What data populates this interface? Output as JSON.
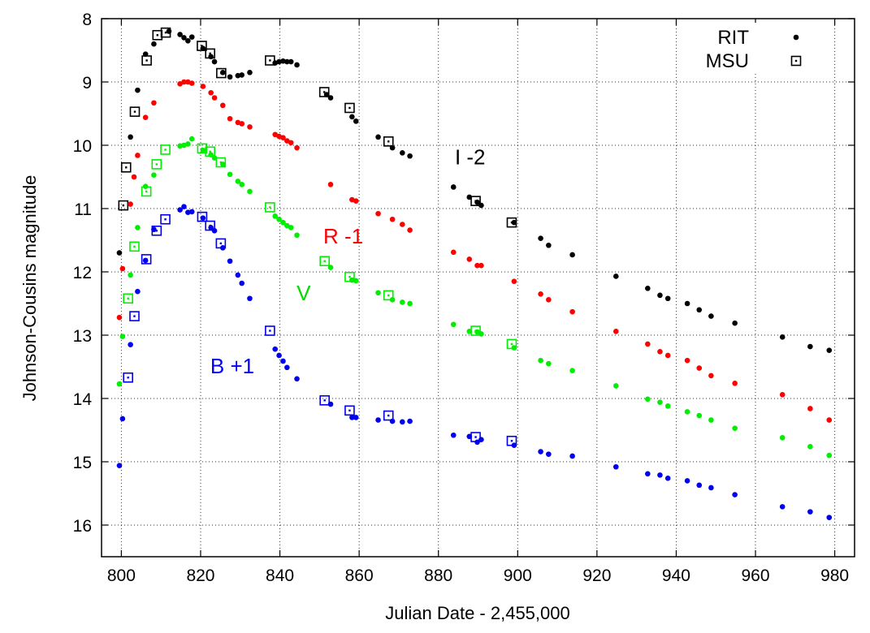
{
  "chart_data": {
    "type": "scatter",
    "xlabel": "Julian Date - 2,455,000",
    "ylabel": "Johnson-Cousins magnitude",
    "xlim": [
      795,
      985
    ],
    "ylim": [
      8,
      16.5
    ],
    "y_inverted": true,
    "grid": true,
    "x_ticks": [
      800,
      820,
      840,
      860,
      880,
      900,
      920,
      940,
      960,
      980
    ],
    "y_ticks": [
      8,
      9,
      10,
      11,
      12,
      13,
      14,
      15,
      16
    ],
    "legend": {
      "placement": "top-right",
      "entries": [
        {
          "label": "RIT",
          "marker": "dot"
        },
        {
          "label": "MSU",
          "marker": "square"
        }
      ]
    },
    "annotations": [
      {
        "text": "I -2",
        "x": 888,
        "y": 10.3,
        "color": "#000000"
      },
      {
        "text": "R -1",
        "x": 856,
        "y": 11.55,
        "color": "#ff0000"
      },
      {
        "text": "V",
        "x": 846,
        "y": 12.45,
        "color": "#00dd00"
      },
      {
        "text": "B +1",
        "x": 828,
        "y": 13.6,
        "color": "#0000ff"
      }
    ],
    "colors": {
      "I": "#000000",
      "R": "#ff0000",
      "V": "#00ee00",
      "B": "#0000ee"
    },
    "series": [
      {
        "band": "I",
        "instrument": "RIT",
        "color": "#000000",
        "marker": "dot",
        "points": [
          [
            799.5,
            11.7
          ],
          [
            802.3,
            9.87
          ],
          [
            804.1,
            9.13
          ],
          [
            806.1,
            8.56
          ],
          [
            808.2,
            8.4
          ],
          [
            812.0,
            8.2
          ],
          [
            814.8,
            8.25
          ],
          [
            815.8,
            8.3
          ],
          [
            816.8,
            8.35
          ],
          [
            817.8,
            8.29
          ],
          [
            820.6,
            8.47
          ],
          [
            822.6,
            8.6
          ],
          [
            823.5,
            8.68
          ],
          [
            825.6,
            8.85
          ],
          [
            827.4,
            8.92
          ],
          [
            829.4,
            8.9
          ],
          [
            830.4,
            8.89
          ],
          [
            832.4,
            8.85
          ],
          [
            838.8,
            8.7
          ],
          [
            839.8,
            8.68
          ],
          [
            840.8,
            8.67
          ],
          [
            841.8,
            8.68
          ],
          [
            842.8,
            8.68
          ],
          [
            844.3,
            8.73
          ],
          [
            851.8,
            9.2
          ],
          [
            852.8,
            9.25
          ],
          [
            858.2,
            9.55
          ],
          [
            859.2,
            9.62
          ],
          [
            864.8,
            9.87
          ],
          [
            868.4,
            10.04
          ],
          [
            870.9,
            10.12
          ],
          [
            872.8,
            10.17
          ],
          [
            883.8,
            10.66
          ],
          [
            887.8,
            10.82
          ],
          [
            889.8,
            10.9
          ],
          [
            890.8,
            10.95
          ],
          [
            899.1,
            11.22
          ],
          [
            905.8,
            11.47
          ],
          [
            907.8,
            11.58
          ],
          [
            913.8,
            11.73
          ],
          [
            924.8,
            12.07
          ],
          [
            932.8,
            12.26
          ],
          [
            935.9,
            12.37
          ],
          [
            937.9,
            12.42
          ],
          [
            942.8,
            12.5
          ],
          [
            945.8,
            12.6
          ],
          [
            948.8,
            12.7
          ],
          [
            954.8,
            12.81
          ],
          [
            966.8,
            13.03
          ],
          [
            973.8,
            13.18
          ],
          [
            978.6,
            13.24
          ]
        ]
      },
      {
        "band": "I",
        "instrument": "MSU",
        "color": "#000000",
        "marker": "square",
        "points": [
          [
            800.5,
            10.95
          ],
          [
            801.2,
            10.35
          ],
          [
            803.4,
            9.47
          ],
          [
            806.4,
            8.66
          ],
          [
            809.1,
            8.26
          ],
          [
            811.2,
            8.22
          ],
          [
            820.3,
            8.43
          ],
          [
            822.4,
            8.55
          ],
          [
            825.2,
            8.86
          ],
          [
            837.5,
            8.66
          ],
          [
            851.2,
            9.16
          ],
          [
            857.6,
            9.41
          ],
          [
            867.4,
            9.94
          ],
          [
            889.4,
            10.88
          ],
          [
            898.5,
            11.22
          ]
        ]
      },
      {
        "band": "R",
        "instrument": "RIT",
        "color": "#ff0000",
        "marker": "dot",
        "points": [
          [
            799.5,
            12.72
          ],
          [
            800.3,
            11.95
          ],
          [
            802.3,
            10.93
          ],
          [
            803.2,
            10.5
          ],
          [
            804.1,
            10.16
          ],
          [
            806.1,
            9.56
          ],
          [
            808.2,
            9.33
          ],
          [
            814.8,
            9.03
          ],
          [
            815.8,
            9.0
          ],
          [
            816.8,
            9.0
          ],
          [
            817.8,
            9.02
          ],
          [
            820.6,
            9.07
          ],
          [
            822.6,
            9.17
          ],
          [
            823.5,
            9.25
          ],
          [
            825.6,
            9.37
          ],
          [
            827.4,
            9.58
          ],
          [
            829.4,
            9.64
          ],
          [
            830.4,
            9.66
          ],
          [
            832.4,
            9.71
          ],
          [
            838.8,
            9.83
          ],
          [
            839.8,
            9.86
          ],
          [
            840.8,
            9.88
          ],
          [
            841.8,
            9.93
          ],
          [
            842.8,
            9.96
          ],
          [
            844.3,
            10.04
          ],
          [
            852.8,
            10.62
          ],
          [
            858.2,
            10.86
          ],
          [
            859.2,
            10.88
          ],
          [
            864.8,
            11.08
          ],
          [
            868.4,
            11.17
          ],
          [
            870.9,
            11.25
          ],
          [
            872.8,
            11.34
          ],
          [
            883.8,
            11.69
          ],
          [
            887.8,
            11.8
          ],
          [
            889.8,
            11.9
          ],
          [
            890.8,
            11.9
          ],
          [
            899.1,
            12.15
          ],
          [
            905.8,
            12.35
          ],
          [
            907.8,
            12.44
          ],
          [
            913.8,
            12.63
          ],
          [
            924.8,
            12.94
          ],
          [
            932.8,
            13.14
          ],
          [
            935.9,
            13.26
          ],
          [
            937.9,
            13.32
          ],
          [
            942.8,
            13.4
          ],
          [
            945.8,
            13.52
          ],
          [
            948.8,
            13.64
          ],
          [
            954.8,
            13.76
          ],
          [
            966.8,
            13.94
          ],
          [
            973.8,
            14.16
          ],
          [
            978.6,
            14.34
          ]
        ]
      },
      {
        "band": "V",
        "instrument": "RIT",
        "color": "#00ee00",
        "marker": "dot",
        "points": [
          [
            799.5,
            13.77
          ],
          [
            800.3,
            13.02
          ],
          [
            802.3,
            12.05
          ],
          [
            804.1,
            11.3
          ],
          [
            806.1,
            10.65
          ],
          [
            808.2,
            10.47
          ],
          [
            814.8,
            10.01
          ],
          [
            815.8,
            10.0
          ],
          [
            816.8,
            9.98
          ],
          [
            817.8,
            9.9
          ],
          [
            820.6,
            10.08
          ],
          [
            822.6,
            10.15
          ],
          [
            823.5,
            10.2
          ],
          [
            825.6,
            10.3
          ],
          [
            827.4,
            10.46
          ],
          [
            829.4,
            10.57
          ],
          [
            830.4,
            10.62
          ],
          [
            832.4,
            10.73
          ],
          [
            838.8,
            11.12
          ],
          [
            839.8,
            11.17
          ],
          [
            840.8,
            11.22
          ],
          [
            841.8,
            11.27
          ],
          [
            842.8,
            11.3
          ],
          [
            844.3,
            11.42
          ],
          [
            852.8,
            11.93
          ],
          [
            858.2,
            12.13
          ],
          [
            859.2,
            12.14
          ],
          [
            864.8,
            12.33
          ],
          [
            868.4,
            12.44
          ],
          [
            870.9,
            12.48
          ],
          [
            872.8,
            12.5
          ],
          [
            883.8,
            12.83
          ],
          [
            887.8,
            12.94
          ],
          [
            889.8,
            12.95
          ],
          [
            890.8,
            12.98
          ],
          [
            899.1,
            13.2
          ],
          [
            905.8,
            13.4
          ],
          [
            907.8,
            13.45
          ],
          [
            913.8,
            13.56
          ],
          [
            924.8,
            13.8
          ],
          [
            932.8,
            14.01
          ],
          [
            935.9,
            14.06
          ],
          [
            937.9,
            14.12
          ],
          [
            942.8,
            14.21
          ],
          [
            945.8,
            14.27
          ],
          [
            948.8,
            14.34
          ],
          [
            954.8,
            14.47
          ],
          [
            966.8,
            14.62
          ],
          [
            973.8,
            14.76
          ],
          [
            978.6,
            14.9
          ]
        ]
      },
      {
        "band": "V",
        "instrument": "MSU",
        "color": "#00ee00",
        "marker": "square",
        "points": [
          [
            801.7,
            12.42
          ],
          [
            803.3,
            11.6
          ],
          [
            806.3,
            10.73
          ],
          [
            808.9,
            10.3
          ],
          [
            811.1,
            10.07
          ],
          [
            820.4,
            10.05
          ],
          [
            822.4,
            10.1
          ],
          [
            825.1,
            10.27
          ],
          [
            837.5,
            10.98
          ],
          [
            851.3,
            11.83
          ],
          [
            857.6,
            12.08
          ],
          [
            867.4,
            12.37
          ],
          [
            889.4,
            12.93
          ],
          [
            898.5,
            13.14
          ]
        ]
      },
      {
        "band": "B",
        "instrument": "RIT",
        "color": "#0000ee",
        "marker": "dot",
        "points": [
          [
            799.5,
            15.06
          ],
          [
            800.3,
            14.32
          ],
          [
            802.3,
            13.15
          ],
          [
            804.1,
            12.31
          ],
          [
            806.1,
            11.82
          ],
          [
            808.2,
            11.33
          ],
          [
            814.8,
            11.02
          ],
          [
            815.8,
            10.97
          ],
          [
            816.8,
            11.06
          ],
          [
            817.8,
            11.05
          ],
          [
            820.6,
            11.15
          ],
          [
            822.6,
            11.3
          ],
          [
            823.5,
            11.35
          ],
          [
            825.6,
            11.62
          ],
          [
            827.4,
            11.83
          ],
          [
            829.4,
            12.05
          ],
          [
            830.4,
            12.18
          ],
          [
            832.4,
            12.42
          ],
          [
            838.8,
            13.22
          ],
          [
            839.8,
            13.32
          ],
          [
            840.8,
            13.41
          ],
          [
            841.8,
            13.51
          ],
          [
            844.3,
            13.69
          ],
          [
            852.8,
            14.09
          ],
          [
            858.2,
            14.3
          ],
          [
            859.2,
            14.3
          ],
          [
            864.8,
            14.34
          ],
          [
            868.4,
            14.36
          ],
          [
            870.9,
            14.37
          ],
          [
            872.8,
            14.36
          ],
          [
            883.8,
            14.58
          ],
          [
            887.8,
            14.6
          ],
          [
            889.8,
            14.69
          ],
          [
            890.8,
            14.65
          ],
          [
            899.1,
            14.74
          ],
          [
            905.8,
            14.84
          ],
          [
            907.8,
            14.88
          ],
          [
            913.8,
            14.91
          ],
          [
            924.8,
            15.08
          ],
          [
            932.8,
            15.19
          ],
          [
            935.9,
            15.21
          ],
          [
            937.9,
            15.26
          ],
          [
            942.8,
            15.3
          ],
          [
            945.8,
            15.37
          ],
          [
            948.8,
            15.41
          ],
          [
            954.8,
            15.52
          ],
          [
            966.8,
            15.71
          ],
          [
            973.8,
            15.79
          ],
          [
            978.6,
            15.88
          ]
        ]
      },
      {
        "band": "B",
        "instrument": "MSU",
        "color": "#0000ee",
        "marker": "square",
        "points": [
          [
            801.7,
            13.67
          ],
          [
            803.3,
            12.7
          ],
          [
            806.3,
            11.8
          ],
          [
            808.9,
            11.35
          ],
          [
            811.1,
            11.17
          ],
          [
            820.4,
            11.13
          ],
          [
            822.4,
            11.27
          ],
          [
            825.1,
            11.55
          ],
          [
            837.5,
            12.93
          ],
          [
            851.3,
            14.03
          ],
          [
            857.6,
            14.19
          ],
          [
            867.4,
            14.27
          ],
          [
            889.4,
            14.61
          ],
          [
            898.5,
            14.67
          ]
        ]
      }
    ]
  }
}
